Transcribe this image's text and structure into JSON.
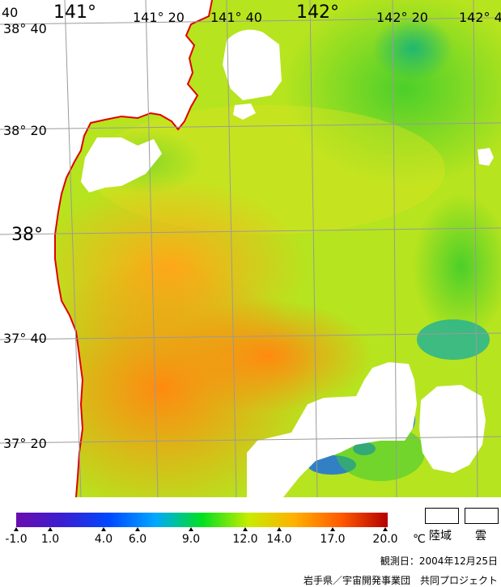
{
  "map": {
    "lat_labels": [
      "38° 40",
      "38° 20",
      "38°",
      "37° 40",
      "37° 20"
    ],
    "lon_labels": [
      "141°",
      "141° 20",
      "141° 40",
      "142°",
      "142° 20",
      "142° 4"
    ],
    "corner_label": "40"
  },
  "legend": {
    "ticks": [
      "-1.0",
      "1.0",
      "4.0",
      "6.0",
      "9.0",
      "12.0",
      "14.0",
      "17.0",
      "20.0"
    ],
    "unit": "℃",
    "land_label": "陸域",
    "cloud_label": "雲",
    "colors": [
      "#6a0dad",
      "#3a1fd0",
      "#0048ff",
      "#00a8ff",
      "#00e020",
      "#c8ec00",
      "#ffb000",
      "#ff5a00",
      "#b40000"
    ],
    "land_color": "#ffffff",
    "coast_color": "#e00000",
    "grid_color": "#9a9a9a"
  },
  "footer": {
    "date": "観測日：2004年12月25日",
    "credit": "岩手県／宇宙開発事業団　共同プロジェクト"
  }
}
